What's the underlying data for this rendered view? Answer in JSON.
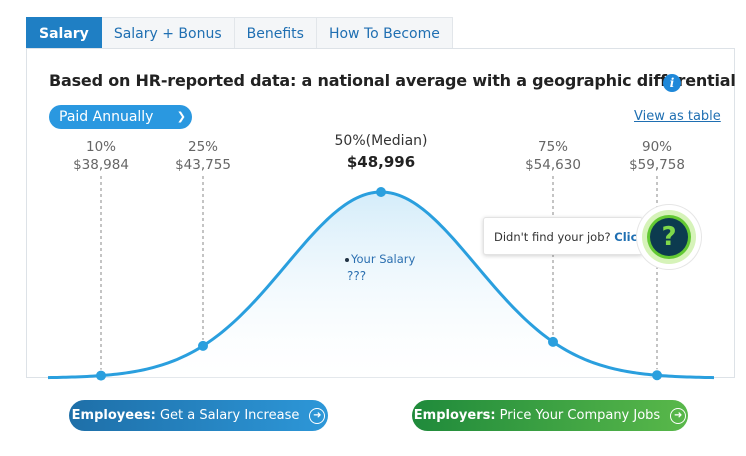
{
  "tabs": [
    {
      "label": "Salary",
      "active": true
    },
    {
      "label": "Salary + Bonus",
      "active": false
    },
    {
      "label": "Benefits",
      "active": false
    },
    {
      "label": "How To Become",
      "active": false
    }
  ],
  "heading": "Based on HR-reported data: a national average with a geographic differential",
  "info_icon": "i",
  "pay_period": {
    "selected": "Paid Annually"
  },
  "view_as_table": "View as table",
  "chart_data": {
    "type": "line",
    "title": "",
    "categories": [
      "10%",
      "25%",
      "50%(Median)",
      "75%",
      "90%"
    ],
    "series": [
      {
        "values": [
          38984,
          43755,
          48996,
          54630,
          59758
        ]
      }
    ],
    "value_labels": [
      "$38,984",
      "$43,755",
      "$48,996",
      "$54,630",
      "$59,758"
    ],
    "grid": false
  },
  "your_salary": {
    "label": "Your Salary",
    "value": "???"
  },
  "help": {
    "text": "Didn't find your job?",
    "link": "Click",
    "icon_glyph": "?"
  },
  "buttons": {
    "employees": {
      "bold": "Employees:",
      "text": " Get a Salary Increase"
    },
    "employers": {
      "bold": "Employers:",
      "text": " Price Your Company Jobs"
    }
  },
  "colors": {
    "accent": "#1f7fc4",
    "curve": "#2a9fde",
    "employees_btn": "#1e6fa8",
    "employers_btn": "#1f8a3b"
  }
}
